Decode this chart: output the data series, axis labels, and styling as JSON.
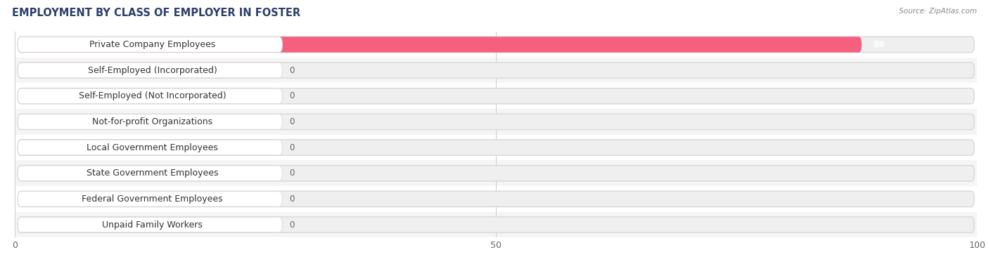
{
  "title": "EMPLOYMENT BY CLASS OF EMPLOYER IN FOSTER",
  "source_text": "Source: ZipAtlas.com",
  "categories": [
    "Private Company Employees",
    "Self-Employed (Incorporated)",
    "Self-Employed (Not Incorporated)",
    "Not-for-profit Organizations",
    "Local Government Employees",
    "State Government Employees",
    "Federal Government Employees",
    "Unpaid Family Workers"
  ],
  "values": [
    88,
    0,
    0,
    0,
    0,
    0,
    0,
    0
  ],
  "bar_colors": [
    "#f4607e",
    "#f5bc7a",
    "#f5907a",
    "#a8bde8",
    "#c0a8d8",
    "#7ecfcf",
    "#b0b8e8",
    "#f5a0b8"
  ],
  "xlim": [
    0,
    100
  ],
  "xticks": [
    0,
    50,
    100
  ],
  "title_fontsize": 10.5,
  "label_fontsize": 9,
  "value_fontsize": 8.5,
  "background_color": "#ffffff",
  "row_bg_even": "#ffffff",
  "row_bg_odd": "#f5f5f5",
  "bar_track_color": "#e8e8e8",
  "zero_bar_width": 27
}
